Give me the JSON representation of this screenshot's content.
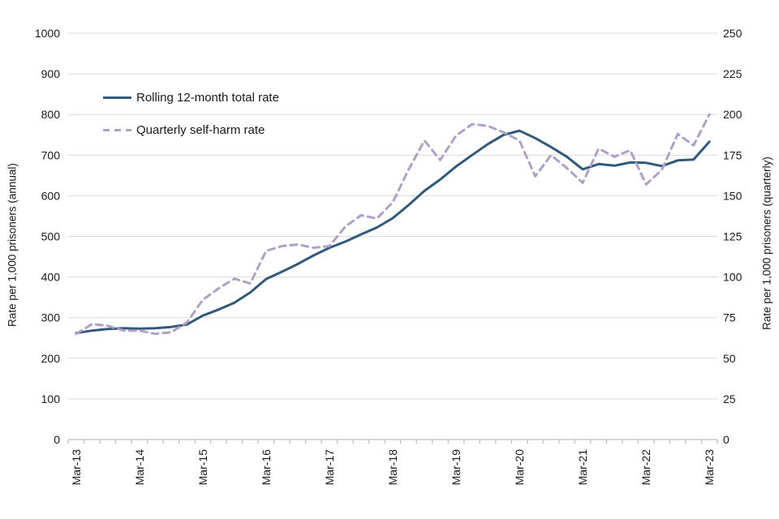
{
  "chart_data": {
    "type": "line",
    "title": "",
    "x_categories": [
      "Mar-13",
      "Jun-13",
      "Sep-13",
      "Dec-13",
      "Mar-14",
      "Jun-14",
      "Sep-14",
      "Dec-14",
      "Mar-15",
      "Jun-15",
      "Sep-15",
      "Dec-15",
      "Mar-16",
      "Jun-16",
      "Sep-16",
      "Dec-16",
      "Mar-17",
      "Jun-17",
      "Sep-17",
      "Dec-17",
      "Mar-18",
      "Jun-18",
      "Sep-18",
      "Dec-18",
      "Mar-19",
      "Jun-19",
      "Sep-19",
      "Dec-19",
      "Mar-20",
      "Jun-20",
      "Sep-20",
      "Dec-20",
      "Mar-21",
      "Jun-21",
      "Sep-21",
      "Dec-21",
      "Mar-22",
      "Jun-22",
      "Sep-22",
      "Dec-22",
      "Mar-23"
    ],
    "x_tick_label_every": 4,
    "x_tick_labels_shown": [
      "Mar-13",
      "Mar-14",
      "Mar-15",
      "Mar-16",
      "Mar-17",
      "Mar-18",
      "Mar-19",
      "Mar-20",
      "Mar-21",
      "Mar-22",
      "Mar-23"
    ],
    "series": [
      {
        "name": "Rolling 12-month total rate",
        "axis": "left",
        "style": "solid",
        "color": "#31597c",
        "values": [
          262,
          268,
          272,
          274,
          273,
          274,
          277,
          283,
          305,
          320,
          337,
          362,
          395,
          413,
          432,
          453,
          472,
          487,
          505,
          522,
          545,
          577,
          612,
          640,
          672,
          700,
          727,
          750,
          760,
          742,
          720,
          696,
          665,
          678,
          674,
          682,
          681,
          673,
          687,
          689,
          733
        ]
      },
      {
        "name": "Quarterly self-harm rate",
        "axis": "right",
        "style": "dashed",
        "color": "#b0a0c7",
        "values": [
          65,
          71,
          70,
          67,
          67,
          65,
          66,
          72,
          86,
          93,
          99,
          96,
          116,
          119,
          120,
          118,
          119,
          131,
          138,
          136,
          146,
          166,
          184,
          172,
          187,
          194,
          193,
          189,
          184,
          162,
          175,
          167,
          158,
          179,
          174,
          178,
          157,
          166,
          188,
          181,
          200
        ]
      }
    ],
    "left_axis": {
      "label": "Rate per 1,000 prisoners (annual)",
      "min": 0,
      "max": 1000,
      "step": 100
    },
    "right_axis": {
      "label": "Rate per 1,000 prisoners (quarterly)",
      "min": 0,
      "max": 250,
      "step": 25
    },
    "grid": true,
    "legend_position": "top-left-inside"
  },
  "colors": {
    "gridline": "#d9d9d9",
    "axis_line": "#bfbfbf",
    "tick_text": "#1a1a1a",
    "background": "#ffffff"
  }
}
